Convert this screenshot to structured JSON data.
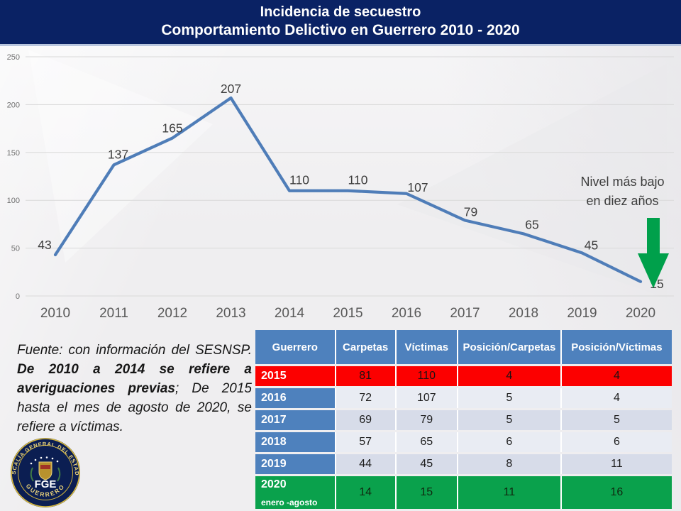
{
  "slide": {
    "title_line1": "Incidencia de secuestro",
    "title_line2": "Comportamiento Delictivo en Guerrero 2010 - 2020"
  },
  "chart_data": {
    "type": "line",
    "title": "Incidencia de secuestro en Guerrero 2010 - 2020",
    "categories": [
      "2010",
      "2011",
      "2012",
      "2013",
      "2014",
      "2015",
      "2016",
      "2017",
      "2018",
      "2019",
      "2020"
    ],
    "values": [
      43,
      137,
      165,
      207,
      110,
      110,
      107,
      79,
      65,
      45,
      15
    ],
    "xlabel": "",
    "ylabel": "",
    "ylim": [
      0,
      250
    ],
    "yticks": [
      0,
      50,
      100,
      150,
      200,
      250
    ],
    "grid": true,
    "legend": "none",
    "line_color": "#4f7db8",
    "grid_color": "#d9d9d9",
    "ytick_color": "#6f6f6f",
    "xtick_color": "#595959",
    "data_label_color": "#3d3d3d"
  },
  "annotation": {
    "line1": "Nivel más bajo",
    "line2": "en diez años",
    "arrow_color": "#00a04b"
  },
  "source": {
    "prefix": "Fuente: con información del SESNSP. ",
    "bold": "De 2010 a 2014 se refiere a averiguaciones previas",
    "suffix": "; De 2015 hasta el mes de agosto de 2020, se refiere a víctimas."
  },
  "logo": {
    "org": "FISCALÍA GENERAL DEL ESTADO",
    "abbr": "FGE",
    "state": "GUERRERO"
  },
  "table": {
    "headers": [
      "Guerrero",
      "Carpetas",
      "Víctimas",
      "Posición/Carpetas",
      "Posición/Víctimas"
    ],
    "rows": [
      {
        "year": "2015",
        "sub": "",
        "values": [
          81,
          110,
          4,
          4
        ],
        "style": "row-red"
      },
      {
        "year": "2016",
        "sub": "",
        "values": [
          72,
          107,
          5,
          4
        ],
        "style": "band-light"
      },
      {
        "year": "2017",
        "sub": "",
        "values": [
          69,
          79,
          5,
          5
        ],
        "style": "band-dark"
      },
      {
        "year": "2018",
        "sub": "",
        "values": [
          57,
          65,
          6,
          6
        ],
        "style": "band-light"
      },
      {
        "year": "2019",
        "sub": "",
        "values": [
          44,
          45,
          8,
          11
        ],
        "style": "band-dark"
      },
      {
        "year": "2020",
        "sub": "enero -agosto",
        "values": [
          14,
          15,
          11,
          16
        ],
        "style": "row-green"
      }
    ],
    "colors": {
      "header_bg": "#4e81bd",
      "red_row": "#fc0000",
      "green_row": "#0aa14c"
    }
  }
}
